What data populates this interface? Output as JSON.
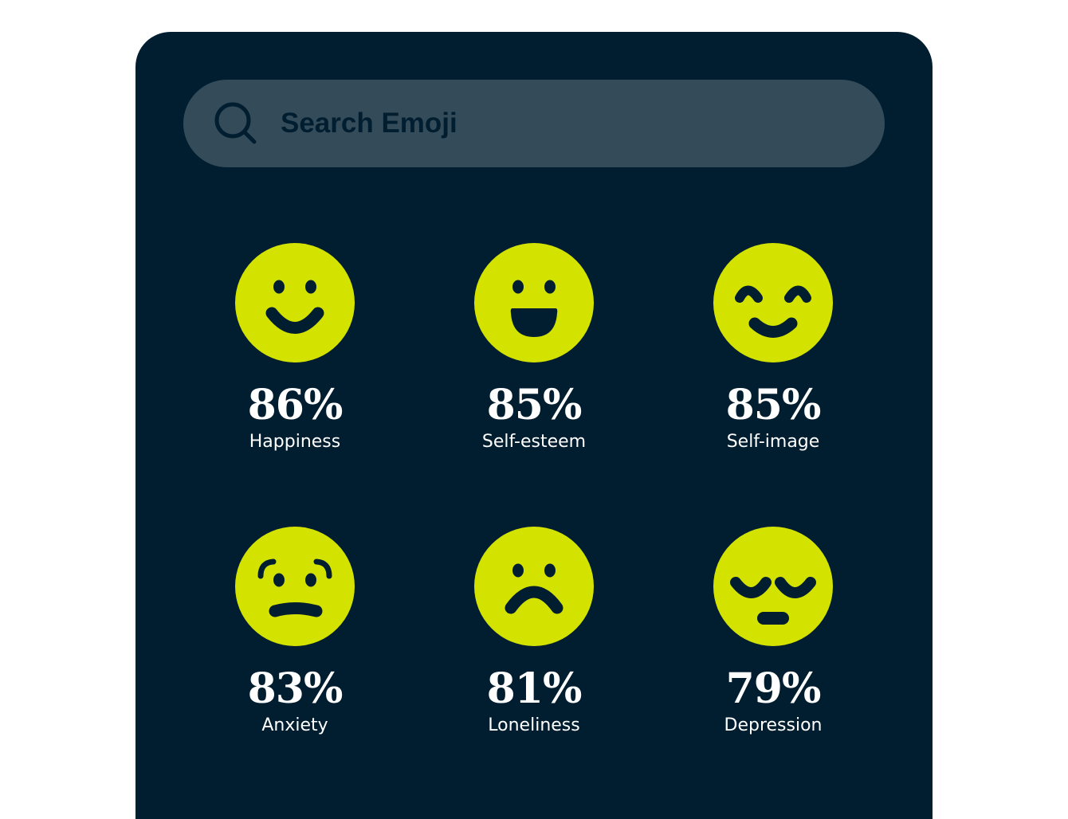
{
  "search": {
    "placeholder": "Search Emoji",
    "icon": "search-icon"
  },
  "colors": {
    "background": "#001e30",
    "search_bar": "#344b5a",
    "emoji": "#d4e200"
  },
  "emotions": [
    {
      "percent": "86%",
      "label": "Happiness",
      "icon": "smiling-face-icon"
    },
    {
      "percent": "85%",
      "label": "Self-esteem",
      "icon": "grinning-face-icon"
    },
    {
      "percent": "85%",
      "label": "Self-image",
      "icon": "smiling-eyes-face-icon"
    },
    {
      "percent": "83%",
      "label": "Anxiety",
      "icon": "anxious-face-icon"
    },
    {
      "percent": "81%",
      "label": "Loneliness",
      "icon": "frowning-face-icon"
    },
    {
      "percent": "79%",
      "label": "Depression",
      "icon": "pensive-face-icon"
    }
  ]
}
